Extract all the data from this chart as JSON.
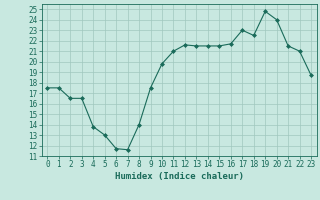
{
  "x": [
    0,
    1,
    2,
    3,
    4,
    5,
    6,
    7,
    8,
    9,
    10,
    11,
    12,
    13,
    14,
    15,
    16,
    17,
    18,
    19,
    20,
    21,
    22,
    23
  ],
  "y": [
    17.5,
    17.5,
    16.5,
    16.5,
    13.8,
    13.0,
    11.7,
    11.6,
    14.0,
    17.5,
    19.8,
    21.0,
    21.6,
    21.5,
    21.5,
    21.5,
    21.7,
    23.0,
    22.5,
    24.8,
    24.0,
    21.5,
    21.0,
    18.7
  ],
  "line_color": "#1a6b5a",
  "marker": "D",
  "marker_size": 2.0,
  "bg_color": "#c8e8e0",
  "grid_color": "#a0c8be",
  "xlabel": "Humidex (Indice chaleur)",
  "xlim": [
    -0.5,
    23.5
  ],
  "ylim": [
    11,
    25.5
  ],
  "yticks": [
    11,
    12,
    13,
    14,
    15,
    16,
    17,
    18,
    19,
    20,
    21,
    22,
    23,
    24,
    25
  ],
  "xticks": [
    0,
    1,
    2,
    3,
    4,
    5,
    6,
    7,
    8,
    9,
    10,
    11,
    12,
    13,
    14,
    15,
    16,
    17,
    18,
    19,
    20,
    21,
    22,
    23
  ],
  "tick_color": "#1a6b5a",
  "label_fontsize": 6.5,
  "tick_fontsize": 5.5
}
